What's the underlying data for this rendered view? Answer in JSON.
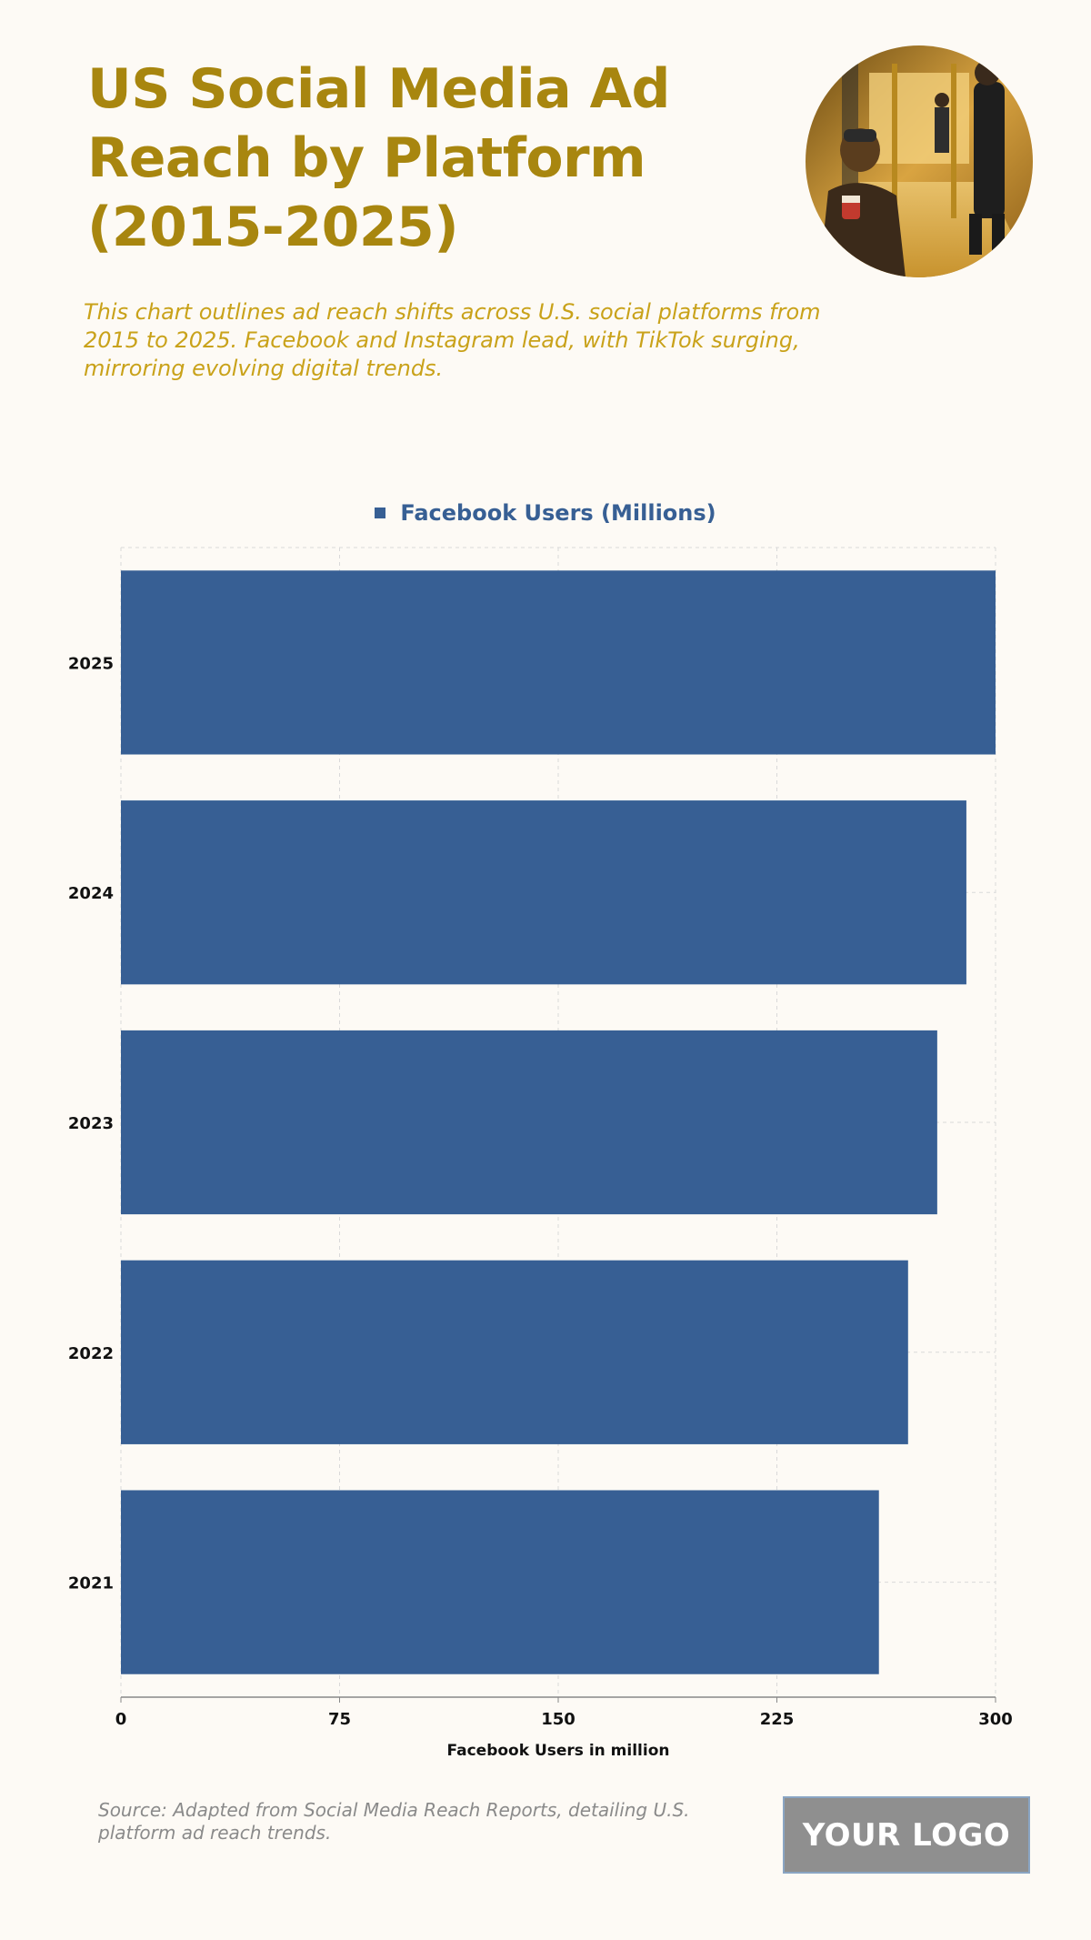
{
  "header": {
    "title": "US Social Media Ad Reach by Platform (2015-2025)",
    "subtitle": "This chart outlines ad reach shifts across U.S. social platforms from 2015 to 2025. Facebook and Instagram lead, with TikTok surging, mirroring evolving digital trends."
  },
  "colors": {
    "title": "#a8860f",
    "subtitle": "#c9a21a",
    "bar": "#375f94",
    "background": "#fdfaf5"
  },
  "chart_data": {
    "type": "bar",
    "orientation": "horizontal",
    "categories": [
      "2025",
      "2024",
      "2023",
      "2022",
      "2021"
    ],
    "series": [
      {
        "name": "Facebook Users (Millions)",
        "values": [
          300,
          290,
          280,
          270,
          260
        ]
      }
    ],
    "xlabel": "Facebook Users in million",
    "ylabel": "",
    "xlim": [
      0,
      300
    ],
    "xticks": [
      "0",
      "75",
      "150",
      "225",
      "300"
    ],
    "grid": true,
    "legend_position": "top-center"
  },
  "footer": {
    "source": "Source: Adapted from Social Media Reach Reports, detailing U.S. platform ad reach trends.",
    "logo_text": "YOUR LOGO"
  },
  "image": {
    "icon": "subway-photo-icon"
  }
}
